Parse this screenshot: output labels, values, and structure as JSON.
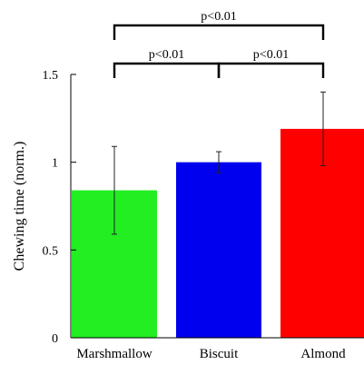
{
  "chart_data": {
    "type": "bar",
    "title": "",
    "xlabel": "",
    "ylabel": "Chewing time (norm.)",
    "ylim": [
      0,
      1.5
    ],
    "yticks": [
      0,
      0.5,
      1,
      1.5
    ],
    "ytick_labels": [
      "0",
      "0.5",
      "1",
      "1.5"
    ],
    "grid": false,
    "categories": [
      "Marshmallow",
      "Biscuit",
      "Almond"
    ],
    "values": [
      0.84,
      1.0,
      1.19
    ],
    "errors": [
      0.25,
      0.06,
      0.21
    ],
    "colors": [
      "#22ee22",
      "#0000ee",
      "#ff0000"
    ],
    "significance": [
      {
        "from": 0,
        "to": 1,
        "label": "p<0.01",
        "level": 1
      },
      {
        "from": 1,
        "to": 2,
        "label": "p<0.01",
        "level": 1
      },
      {
        "from": 0,
        "to": 2,
        "label": "p<0.01",
        "level": 2
      }
    ]
  }
}
